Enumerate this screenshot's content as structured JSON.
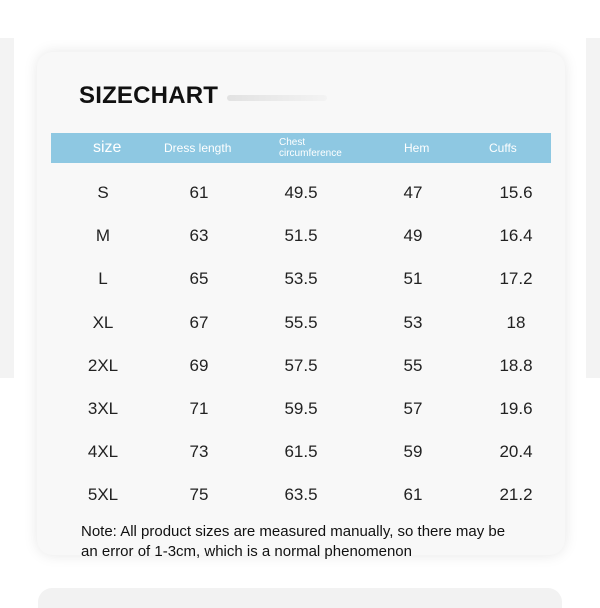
{
  "title": "SIZECHART",
  "header_color": "#8ec8e2",
  "columns": [
    "size",
    "Dress length",
    "Chest circumference",
    "Hem",
    "Cuffs"
  ],
  "rows": [
    [
      "S",
      "61",
      "49.5",
      "47",
      "15.6"
    ],
    [
      "M",
      "63",
      "51.5",
      "49",
      "16.4"
    ],
    [
      "L",
      "65",
      "53.5",
      "51",
      "17.2"
    ],
    [
      "XL",
      "67",
      "55.5",
      "53",
      "18"
    ],
    [
      "2XL",
      "69",
      "57.5",
      "55",
      "18.8"
    ],
    [
      "3XL",
      "71",
      "59.5",
      "57",
      "19.6"
    ],
    [
      "4XL",
      "73",
      "61.5",
      "59",
      "20.4"
    ],
    [
      "5XL",
      "75",
      "63.5",
      "61",
      "21.2"
    ]
  ],
  "note_line1": "Note: All product sizes are measured manually, so there may be",
  "note_line2": "an error of 1-3cm, which is a normal phenomenon"
}
